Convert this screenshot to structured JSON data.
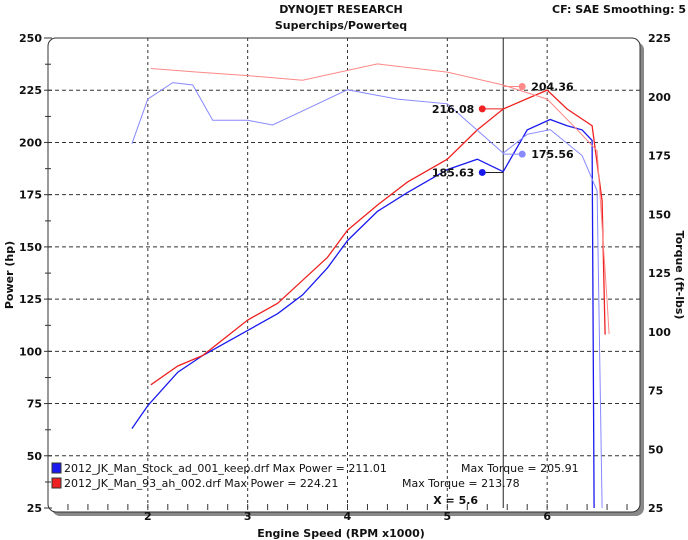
{
  "header": {
    "title": "DYNOJET RESEARCH",
    "subtitle": "Superchips/Powerteq",
    "info": "CF: SAE  Smoothing: 5"
  },
  "chart_data": {
    "type": "line",
    "xlabel": "Engine Speed (RPM x1000)",
    "ylabel": "Power (hp)",
    "y2label": "Torque (ft-lbs)",
    "xlim": [
      1.0,
      6.93
    ],
    "ylim": [
      25,
      250
    ],
    "y2lim": [
      25,
      225
    ],
    "xticks": [
      "2",
      "3",
      "4",
      "5",
      "6"
    ],
    "yticks": [
      "25",
      "50",
      "75",
      "100",
      "125",
      "150",
      "175",
      "200",
      "225",
      "250"
    ],
    "y2ticks": [
      "25",
      "50",
      "75",
      "100",
      "125",
      "150",
      "175",
      "200",
      "225"
    ],
    "grid": true,
    "legend_position": "bottom-left",
    "cursor": {
      "x": 5.56,
      "label": "X = 5.6"
    },
    "series": [
      {
        "name": "2012_JK_Man_Stock_ad_001_keep.drf",
        "kind": "power",
        "axis": "left",
        "color": "#1a1aee",
        "x": [
          1.84,
          2.0,
          2.3,
          2.55,
          3.0,
          3.3,
          3.55,
          3.8,
          4.0,
          4.3,
          4.6,
          5.0,
          5.3,
          5.56,
          5.8,
          6.03,
          6.2,
          6.35,
          6.45,
          6.47
        ],
        "y": [
          63,
          74,
          90,
          98,
          110,
          118,
          127,
          140,
          153,
          167,
          176,
          187,
          192,
          186,
          206,
          211,
          208,
          206,
          201,
          25
        ]
      },
      {
        "name": "2012_JK_Man_93_ah_002.drf",
        "kind": "power",
        "axis": "left",
        "color": "#ee2222",
        "x": [
          2.03,
          2.3,
          2.55,
          3.0,
          3.3,
          3.55,
          3.8,
          4.0,
          4.3,
          4.6,
          5.0,
          5.3,
          5.56,
          5.8,
          6.0,
          6.2,
          6.45,
          6.55,
          6.58
        ],
        "y": [
          84,
          93,
          98,
          115,
          123,
          134,
          145,
          158,
          170,
          181,
          192,
          206,
          216,
          221,
          225,
          216,
          208,
          172,
          108
        ]
      },
      {
        "name": "2012_JK_Man_Stock_ad_001_keep.drf",
        "kind": "torque",
        "axis": "right",
        "color": "#8888ff",
        "x": [
          1.84,
          2.0,
          2.25,
          2.45,
          2.65,
          3.0,
          3.25,
          3.55,
          4.0,
          4.5,
          5.0,
          5.56,
          5.8,
          6.03,
          6.35,
          6.5,
          6.55
        ],
        "y": [
          180,
          199,
          206,
          205,
          190,
          190,
          188,
          194,
          203,
          199,
          197,
          176,
          184,
          186,
          175,
          160,
          25
        ]
      },
      {
        "name": "2012_JK_Man_93_ah_002.drf",
        "kind": "torque",
        "axis": "right",
        "color": "#ff8888",
        "x": [
          2.03,
          2.5,
          3.0,
          3.55,
          4.3,
          5.0,
          5.56,
          6.0,
          6.3,
          6.5,
          6.6,
          6.62
        ],
        "y": [
          212,
          210.5,
          209,
          207,
          214,
          210.5,
          205,
          199,
          186,
          177,
          113,
          99
        ]
      }
    ],
    "markers": [
      {
        "label": "204.36",
        "x": 5.75,
        "y2": 204.36,
        "color": "#ff8888",
        "axis": "right"
      },
      {
        "label": "216.08",
        "x": 5.35,
        "y": 216.08,
        "color": "#ee2222",
        "axis": "left"
      },
      {
        "label": "175.56",
        "x": 5.75,
        "y2": 175.56,
        "color": "#8888ff",
        "axis": "right"
      },
      {
        "label": "185.63",
        "x": 5.35,
        "y": 185.63,
        "color": "#1a1aee",
        "axis": "left"
      }
    ],
    "legend": [
      {
        "text": "2012_JK_Man_Stock_ad_001_keep.drf Max Power = 211.01",
        "torque": "Max Torque = 205.91",
        "color": "#1a1aee"
      },
      {
        "text": "2012_JK_Man_93_ah_002.drf Max Power = 224.21",
        "torque": "Max Torque = 213.78",
        "color": "#ee2222"
      }
    ]
  }
}
